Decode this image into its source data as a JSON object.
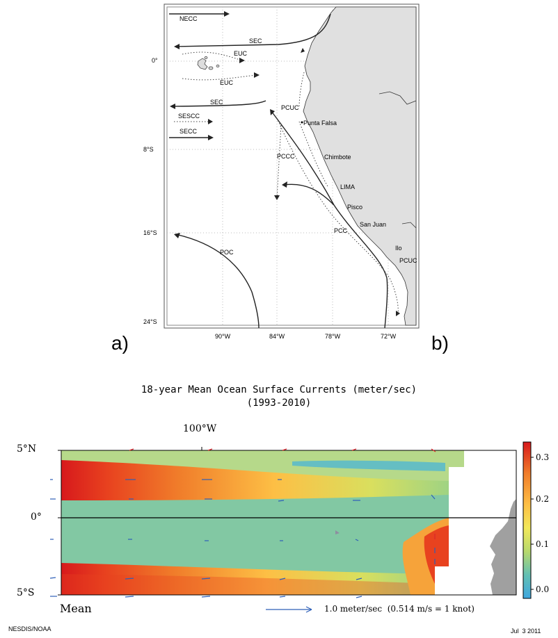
{
  "top_map": {
    "lat_labels": [
      "0°",
      "8°S",
      "16°S",
      "24°S"
    ],
    "lon_labels": [
      "90°W",
      "84°W",
      "78°W",
      "72°W"
    ],
    "currents": [
      "NECC",
      "SEC",
      "EUC",
      "EUC",
      "SEC",
      "SESCC",
      "SECC",
      "PCUC",
      "PCCC",
      "PCC",
      "POC",
      "PCUC"
    ],
    "places": [
      "Punta Falsa",
      "Chimbote",
      "LIMA",
      "Pisco",
      "San Juan",
      "Ilo"
    ],
    "panel_labels": {
      "left": "a)",
      "right": "b)"
    }
  },
  "bottom_map": {
    "title_line1": "18-year Mean Ocean Surface Currents (meter/sec)",
    "title_line2": "(1993-2010)",
    "top_lon_label": "100°W",
    "lat_labels": [
      "5°N",
      "0°",
      "5°S"
    ],
    "colorbar_ticks": [
      "0.3",
      "0.2",
      "0.1",
      "0.0"
    ],
    "colorbar_colors": [
      "#d7191c",
      "#f07c2a",
      "#fdbf45",
      "#f2e85a",
      "#b7d96d",
      "#63c0b3",
      "#3fa7df"
    ],
    "mean_label": "Mean",
    "scale_label": "1.0 meter/sec  (0.514 m/s = 1 knot)"
  },
  "footer": {
    "left": "NESDIS/NOAA",
    "right": "Jul  3 2011"
  }
}
